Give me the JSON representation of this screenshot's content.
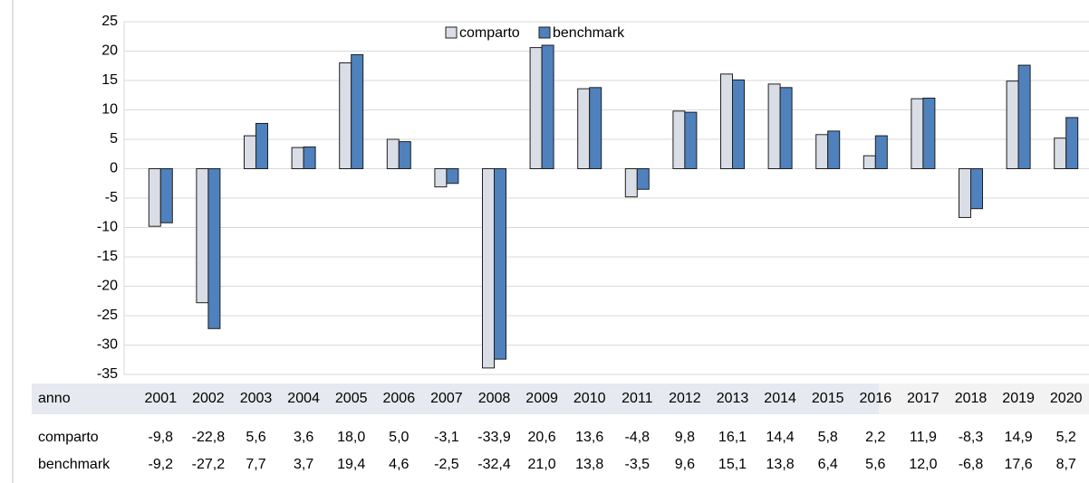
{
  "chart_data": {
    "type": "bar",
    "table_header": "anno",
    "categories": [
      "2001",
      "2002",
      "2003",
      "2004",
      "2005",
      "2006",
      "2007",
      "2008",
      "2009",
      "2010",
      "2011",
      "2012",
      "2013",
      "2014",
      "2015",
      "2016",
      "2017",
      "2018",
      "2019",
      "2020"
    ],
    "series": [
      {
        "name": "comparto",
        "color": "#d9dde6",
        "values": [
          -9.8,
          -22.8,
          5.6,
          3.6,
          18.0,
          5.0,
          -3.1,
          -33.9,
          20.6,
          13.6,
          -4.8,
          9.8,
          16.1,
          14.4,
          5.8,
          2.2,
          11.9,
          -8.3,
          14.9,
          5.2
        ],
        "value_labels": [
          "-9,8",
          "-22,8",
          "5,6",
          "3,6",
          "18,0",
          "5,0",
          "-3,1",
          "-33,9",
          "20,6",
          "13,6",
          "-4,8",
          "9,8",
          "16,1",
          "14,4",
          "5,8",
          "2,2",
          "11,9",
          "-8,3",
          "14,9",
          "5,2"
        ]
      },
      {
        "name": "benchmark",
        "color": "#4f81bd",
        "values": [
          -9.2,
          -27.2,
          7.7,
          3.7,
          19.4,
          4.6,
          -2.5,
          -32.4,
          21.0,
          13.8,
          -3.5,
          9.6,
          15.1,
          13.8,
          6.4,
          5.6,
          12.0,
          -6.8,
          17.6,
          8.7
        ],
        "value_labels": [
          "-9,2",
          "-27,2",
          "7,7",
          "3,7",
          "19,4",
          "4,6",
          "-2,5",
          "-32,4",
          "21,0",
          "13,8",
          "-3,5",
          "9,6",
          "15,1",
          "13,8",
          "6,4",
          "5,6",
          "12,0",
          "-6,8",
          "17,6",
          "8,7"
        ]
      }
    ],
    "ylim": [
      -35,
      25
    ],
    "yticks": [
      -35,
      -30,
      -25,
      -20,
      -15,
      -10,
      -5,
      0,
      5,
      10,
      15,
      20,
      25
    ],
    "grid": true
  }
}
